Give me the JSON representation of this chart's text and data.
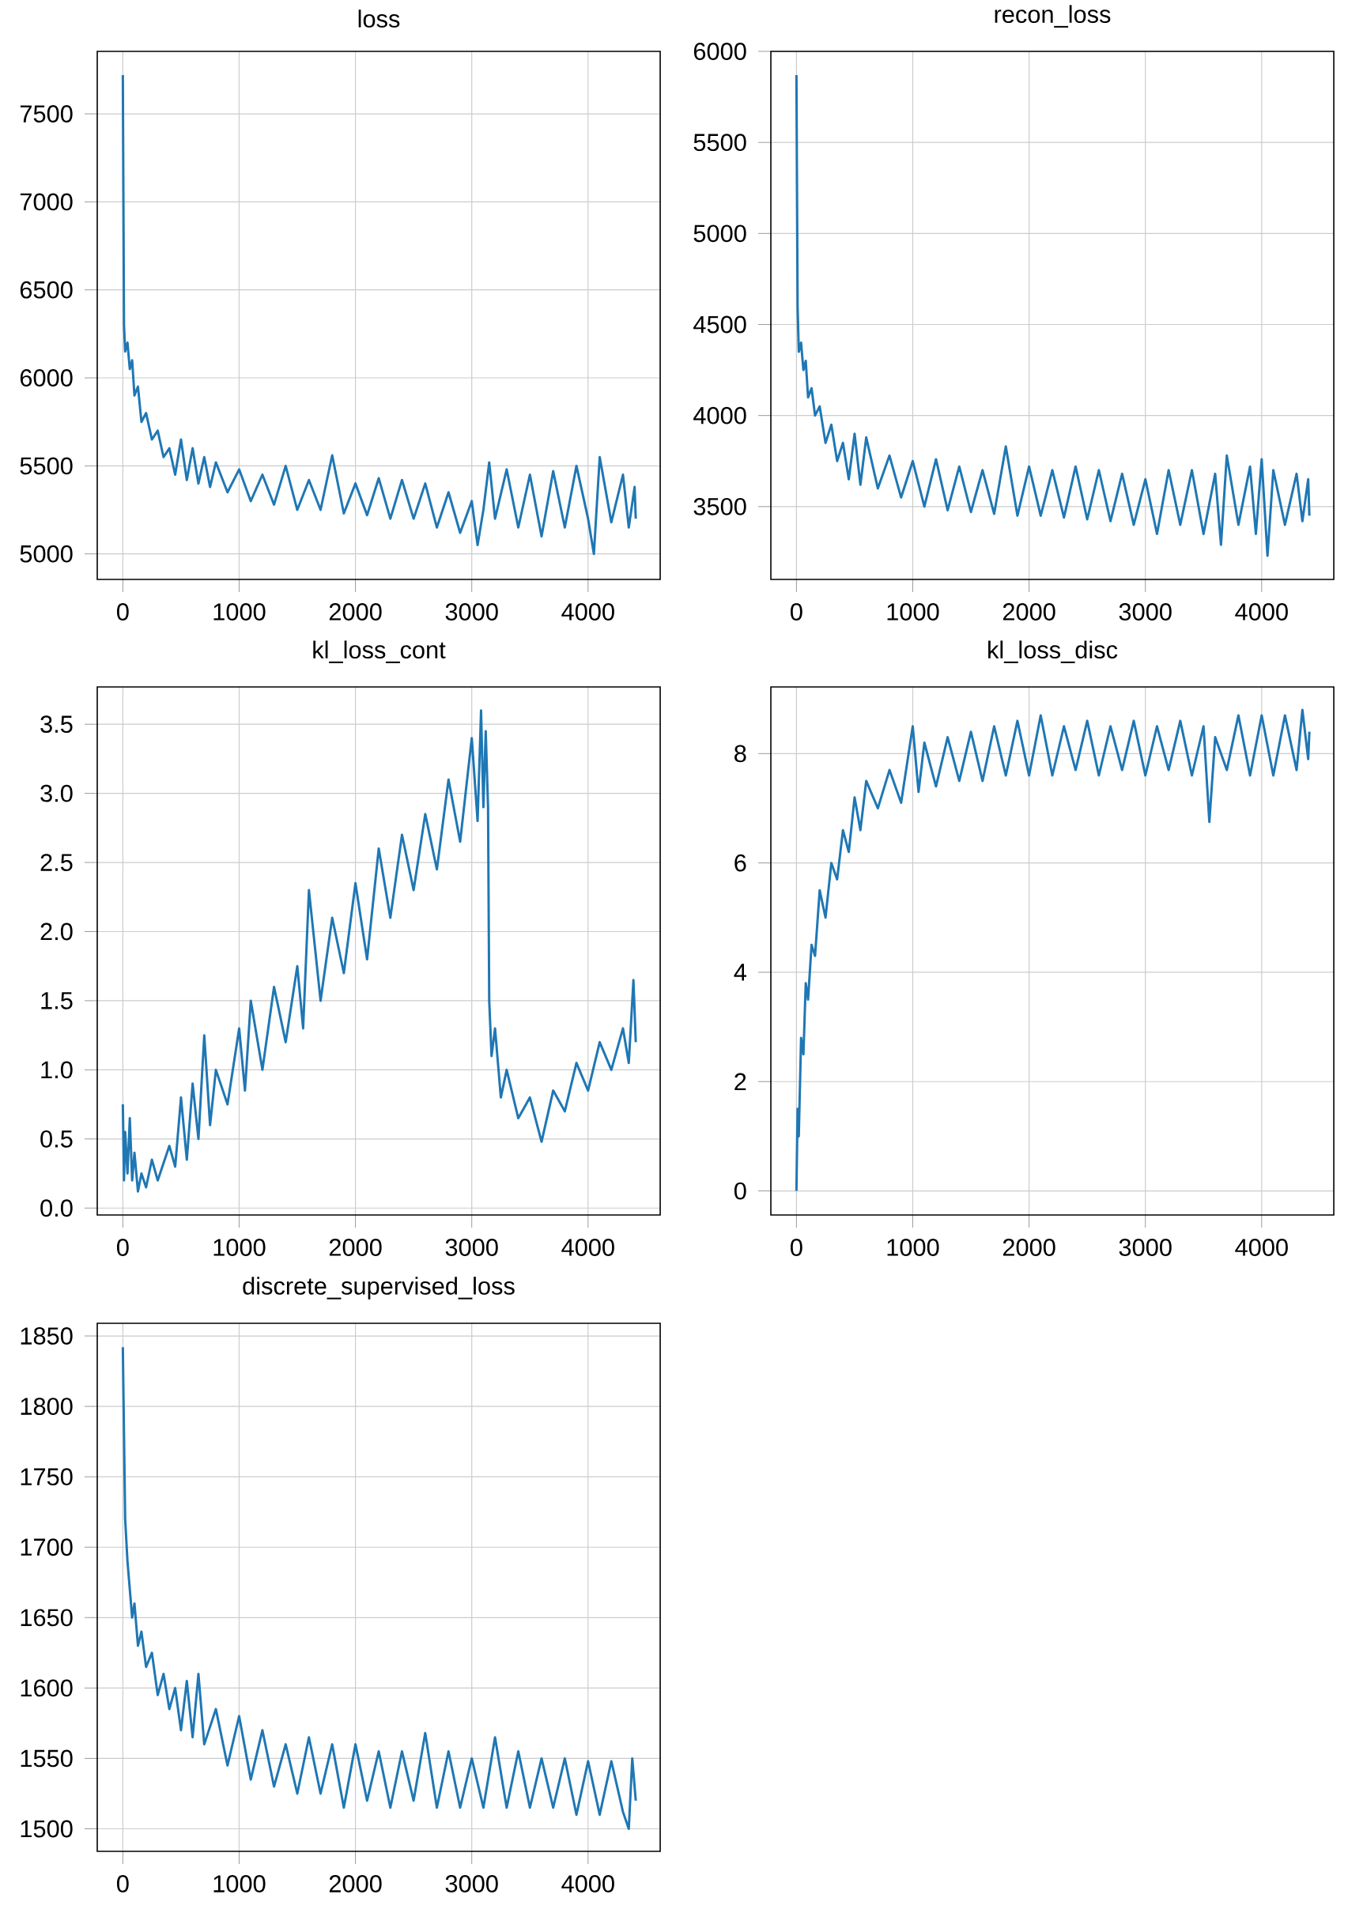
{
  "chart_data": [
    {
      "type": "line",
      "title": "loss",
      "color": "#1f77b4",
      "grid": true,
      "xlim": [
        -220,
        4620
      ],
      "ylim": [
        4855,
        7855
      ],
      "xticks": [
        0,
        1000,
        2000,
        3000,
        4000
      ],
      "yticks": [
        5000,
        5500,
        6000,
        6500,
        7000,
        7500
      ],
      "x": [
        0,
        10,
        20,
        40,
        60,
        80,
        100,
        130,
        160,
        200,
        250,
        300,
        350,
        400,
        450,
        500,
        550,
        600,
        650,
        700,
        750,
        800,
        900,
        1000,
        1100,
        1200,
        1300,
        1400,
        1500,
        1600,
        1700,
        1800,
        1900,
        2000,
        2100,
        2200,
        2300,
        2400,
        2500,
        2600,
        2700,
        2800,
        2900,
        3000,
        3050,
        3100,
        3150,
        3200,
        3300,
        3400,
        3500,
        3600,
        3700,
        3800,
        3900,
        4000,
        4050,
        4100,
        4200,
        4300,
        4350,
        4400,
        4410
      ],
      "values": [
        7720,
        6300,
        6150,
        6200,
        6050,
        6100,
        5900,
        5950,
        5750,
        5800,
        5650,
        5700,
        5550,
        5600,
        5450,
        5650,
        5420,
        5600,
        5400,
        5550,
        5380,
        5520,
        5350,
        5480,
        5300,
        5450,
        5280,
        5500,
        5250,
        5420,
        5250,
        5560,
        5230,
        5400,
        5220,
        5430,
        5200,
        5420,
        5200,
        5400,
        5150,
        5350,
        5120,
        5300,
        5050,
        5250,
        5520,
        5200,
        5480,
        5150,
        5450,
        5100,
        5470,
        5150,
        5500,
        5200,
        5000,
        5550,
        5180,
        5450,
        5150,
        5380,
        5200
      ]
    },
    {
      "type": "line",
      "title": "recon_loss",
      "color": "#1f77b4",
      "grid": true,
      "xlim": [
        -220,
        4620
      ],
      "ylim": [
        3100,
        6000
      ],
      "xticks": [
        0,
        1000,
        2000,
        3000,
        4000
      ],
      "yticks": [
        3500,
        4000,
        4500,
        5000,
        5500,
        6000
      ],
      "x": [
        0,
        10,
        20,
        40,
        60,
        80,
        100,
        130,
        160,
        200,
        250,
        300,
        350,
        400,
        450,
        500,
        550,
        600,
        700,
        800,
        900,
        1000,
        1100,
        1200,
        1300,
        1400,
        1500,
        1600,
        1700,
        1800,
        1900,
        2000,
        2100,
        2200,
        2300,
        2400,
        2500,
        2600,
        2700,
        2800,
        2900,
        3000,
        3100,
        3200,
        3300,
        3400,
        3500,
        3600,
        3650,
        3700,
        3800,
        3900,
        3950,
        4000,
        4050,
        4100,
        4200,
        4300,
        4350,
        4400,
        4410
      ],
      "values": [
        5870,
        4600,
        4350,
        4400,
        4250,
        4300,
        4100,
        4150,
        4000,
        4050,
        3850,
        3950,
        3750,
        3850,
        3650,
        3900,
        3620,
        3880,
        3600,
        3780,
        3550,
        3750,
        3500,
        3760,
        3480,
        3720,
        3470,
        3700,
        3460,
        3830,
        3450,
        3720,
        3450,
        3700,
        3440,
        3720,
        3430,
        3700,
        3420,
        3680,
        3400,
        3650,
        3350,
        3700,
        3400,
        3700,
        3350,
        3680,
        3290,
        3780,
        3400,
        3720,
        3350,
        3760,
        3230,
        3700,
        3400,
        3680,
        3420,
        3650,
        3450
      ]
    },
    {
      "type": "line",
      "title": "kl_loss_cont",
      "color": "#1f77b4",
      "grid": true,
      "xlim": [
        -220,
        4620
      ],
      "ylim": [
        -0.05,
        3.77
      ],
      "xticks": [
        0,
        1000,
        2000,
        3000,
        4000
      ],
      "yticks": [
        {
          "value": 0,
          "label": "0.0"
        },
        {
          "value": 0.5,
          "label": "0.5"
        },
        {
          "value": 1,
          "label": "1.0"
        },
        {
          "value": 1.5,
          "label": "1.5"
        },
        {
          "value": 2,
          "label": "2.0"
        },
        {
          "value": 2.5,
          "label": "2.5"
        },
        {
          "value": 3,
          "label": "3.0"
        },
        {
          "value": 3.5,
          "label": "3.5"
        }
      ],
      "x": [
        0,
        10,
        20,
        40,
        60,
        80,
        100,
        130,
        160,
        200,
        250,
        300,
        400,
        450,
        500,
        550,
        600,
        650,
        700,
        750,
        800,
        900,
        1000,
        1050,
        1100,
        1200,
        1300,
        1400,
        1500,
        1550,
        1600,
        1700,
        1800,
        1900,
        2000,
        2100,
        2200,
        2300,
        2400,
        2500,
        2600,
        2700,
        2800,
        2900,
        3000,
        3050,
        3080,
        3100,
        3120,
        3140,
        3150,
        3170,
        3200,
        3250,
        3300,
        3400,
        3500,
        3600,
        3700,
        3800,
        3900,
        4000,
        4100,
        4200,
        4300,
        4350,
        4390,
        4410
      ],
      "values": [
        0.75,
        0.2,
        0.55,
        0.25,
        0.65,
        0.2,
        0.4,
        0.12,
        0.25,
        0.15,
        0.35,
        0.2,
        0.45,
        0.3,
        0.8,
        0.35,
        0.9,
        0.5,
        1.25,
        0.6,
        1.0,
        0.75,
        1.3,
        0.85,
        1.5,
        1.0,
        1.6,
        1.2,
        1.75,
        1.3,
        2.3,
        1.5,
        2.1,
        1.7,
        2.35,
        1.8,
        2.6,
        2.1,
        2.7,
        2.3,
        2.85,
        2.45,
        3.1,
        2.65,
        3.4,
        2.8,
        3.6,
        2.9,
        3.45,
        2.9,
        1.5,
        1.1,
        1.3,
        0.8,
        1.0,
        0.65,
        0.8,
        0.48,
        0.85,
        0.7,
        1.05,
        0.85,
        1.2,
        1.0,
        1.3,
        1.05,
        1.65,
        1.2
      ]
    },
    {
      "type": "line",
      "title": "kl_loss_disc",
      "color": "#1f77b4",
      "grid": true,
      "xlim": [
        -220,
        4620
      ],
      "ylim": [
        -0.44,
        9.22
      ],
      "xticks": [
        0,
        1000,
        2000,
        3000,
        4000
      ],
      "yticks": [
        0,
        2,
        4,
        6,
        8
      ],
      "x": [
        0,
        10,
        20,
        40,
        60,
        80,
        100,
        130,
        160,
        200,
        250,
        300,
        350,
        400,
        450,
        500,
        550,
        600,
        700,
        800,
        900,
        1000,
        1050,
        1100,
        1200,
        1300,
        1400,
        1500,
        1600,
        1700,
        1800,
        1900,
        2000,
        2100,
        2200,
        2300,
        2400,
        2500,
        2600,
        2700,
        2800,
        2900,
        3000,
        3100,
        3200,
        3300,
        3400,
        3500,
        3550,
        3600,
        3700,
        3800,
        3900,
        4000,
        4100,
        4200,
        4300,
        4350,
        4400,
        4410
      ],
      "values": [
        0,
        1.5,
        1.0,
        2.8,
        2.5,
        3.8,
        3.5,
        4.5,
        4.3,
        5.5,
        5.0,
        6.0,
        5.7,
        6.6,
        6.2,
        7.2,
        6.6,
        7.5,
        7.0,
        7.7,
        7.1,
        8.5,
        7.3,
        8.2,
        7.4,
        8.3,
        7.5,
        8.4,
        7.5,
        8.5,
        7.6,
        8.6,
        7.6,
        8.7,
        7.6,
        8.5,
        7.7,
        8.6,
        7.6,
        8.5,
        7.7,
        8.6,
        7.6,
        8.5,
        7.7,
        8.6,
        7.6,
        8.5,
        6.75,
        8.3,
        7.7,
        8.7,
        7.6,
        8.7,
        7.6,
        8.7,
        7.7,
        8.8,
        7.9,
        8.4
      ]
    },
    {
      "type": "line",
      "title": "discrete_supervised_loss",
      "color": "#1f77b4",
      "grid": true,
      "xlim": [
        -220,
        4620
      ],
      "ylim": [
        1484,
        1859
      ],
      "xticks": [
        0,
        1000,
        2000,
        3000,
        4000
      ],
      "yticks": [
        1500,
        1550,
        1600,
        1650,
        1700,
        1750,
        1800,
        1850
      ],
      "x": [
        0,
        10,
        20,
        40,
        60,
        80,
        100,
        130,
        160,
        200,
        250,
        300,
        350,
        400,
        450,
        500,
        550,
        600,
        650,
        700,
        800,
        900,
        1000,
        1100,
        1200,
        1300,
        1400,
        1500,
        1600,
        1700,
        1800,
        1900,
        2000,
        2100,
        2200,
        2300,
        2400,
        2500,
        2600,
        2700,
        2800,
        2900,
        3000,
        3100,
        3200,
        3300,
        3400,
        3500,
        3600,
        3700,
        3800,
        3900,
        4000,
        4100,
        4200,
        4300,
        4350,
        4380,
        4410
      ],
      "values": [
        1842,
        1780,
        1720,
        1690,
        1670,
        1650,
        1660,
        1630,
        1640,
        1615,
        1625,
        1595,
        1610,
        1585,
        1600,
        1570,
        1605,
        1565,
        1610,
        1560,
        1585,
        1545,
        1580,
        1535,
        1570,
        1530,
        1560,
        1525,
        1565,
        1525,
        1560,
        1515,
        1560,
        1520,
        1555,
        1515,
        1555,
        1520,
        1568,
        1515,
        1555,
        1515,
        1550,
        1515,
        1565,
        1515,
        1555,
        1515,
        1550,
        1515,
        1550,
        1510,
        1548,
        1510,
        1548,
        1512,
        1500,
        1550,
        1520
      ]
    }
  ]
}
